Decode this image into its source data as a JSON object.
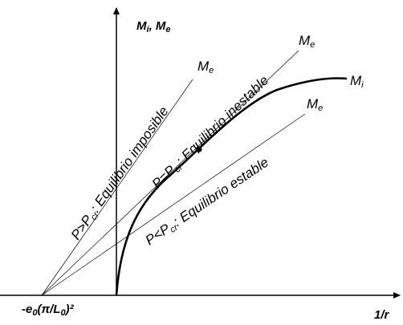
{
  "axes": {
    "y_label_main": "M",
    "y_label_i": "i",
    "y_label_sep": ", ",
    "y_label_main2": "M",
    "y_label_e": "e",
    "x_label": "1/r",
    "origin_label_a": "-e",
    "origin_label_b": "0",
    "origin_label_c": "(π/L",
    "origin_label_d": "0",
    "origin_label_e": ")²"
  },
  "curves": {
    "mi_main": "M",
    "mi_sub": "i",
    "me_main": "M",
    "me_sub": "e"
  },
  "regions": {
    "impossible_a": "P>P",
    "impossible_sub": "cr",
    "impossible_b": ": Equilibrio imposible",
    "unstable_a": "P=P",
    "unstable_sub": "cr",
    "unstable_b": ": Equilibrio inestable",
    "stable_a": "P<P",
    "stable_sub": "cr",
    "stable_b": ": Equilibrio estable"
  }
}
